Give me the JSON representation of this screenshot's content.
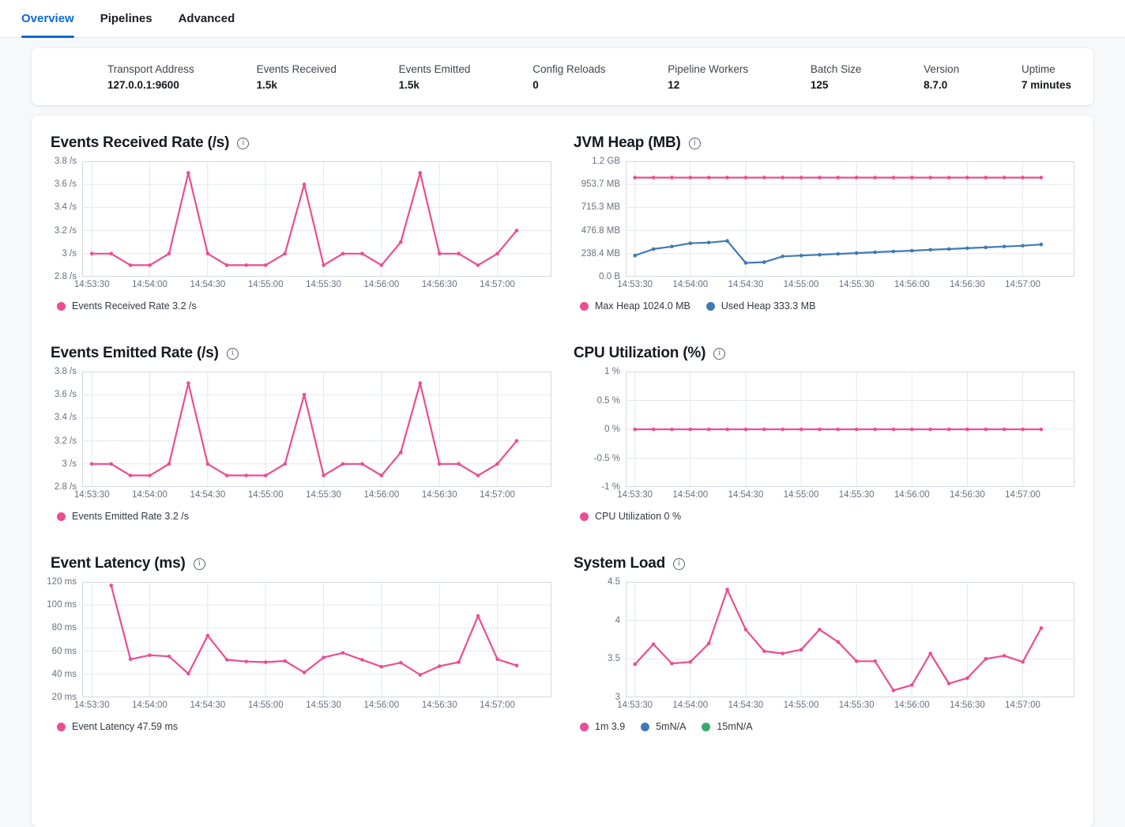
{
  "tabs": [
    {
      "label": "Overview",
      "active": true
    },
    {
      "label": "Pipelines",
      "active": false
    },
    {
      "label": "Advanced",
      "active": false
    }
  ],
  "stats": [
    {
      "label": "Transport Address",
      "value": "127.0.0.1:9600"
    },
    {
      "label": "Events Received",
      "value": "1.5k"
    },
    {
      "label": "Events Emitted",
      "value": "1.5k"
    },
    {
      "label": "Config Reloads",
      "value": "0"
    },
    {
      "label": "Pipeline Workers",
      "value": "12"
    },
    {
      "label": "Batch Size",
      "value": "125"
    },
    {
      "label": "Version",
      "value": "8.7.0"
    },
    {
      "label": "Uptime",
      "value": "7 minutes"
    }
  ],
  "colors": {
    "pink": "#ED4C92",
    "blue": "#3F7AB5",
    "green": "#36AB68",
    "active_tab": "#0B6BD8",
    "grid": "#E4E7ED",
    "plot_border": "#D4D8DF"
  },
  "axis": {
    "x_domain_seconds": [
      -5,
      238
    ],
    "x_grid_seconds": [
      0,
      30,
      60,
      90,
      120,
      150,
      180,
      210
    ],
    "x_tick_labels": [
      "14:53:30",
      "14:54:00",
      "14:54:30",
      "14:55:00",
      "14:55:30",
      "14:56:00",
      "14:56:30",
      "14:57:00"
    ]
  },
  "chart_data": [
    {
      "type": "line",
      "title": "Events Received Rate (/s)",
      "ylim": [
        2.8,
        3.8
      ],
      "y_tick_labels": [
        "3.8 /s",
        "3.6 /s",
        "3.4 /s",
        "3.2 /s",
        "3 /s",
        "2.8 /s"
      ],
      "series": [
        {
          "name": "Events Received Rate",
          "color": "#ED4C92",
          "start": 0,
          "step": 10,
          "values": [
            3,
            3,
            2.9,
            2.9,
            3,
            3.7,
            3,
            2.9,
            2.9,
            2.9,
            3,
            3.6,
            2.9,
            3,
            3,
            2.9,
            3.1,
            3.7,
            3,
            3,
            2.9,
            3,
            3.2
          ]
        }
      ],
      "legend": [
        {
          "label": "Events Received Rate 3.2 /s",
          "color": "#ED4C92"
        }
      ]
    },
    {
      "type": "line",
      "title": "JVM Heap (MB)",
      "ylim": [
        0,
        1192
      ],
      "y_tick_labels": [
        "1.2 GB",
        "953.7 MB",
        "715.3 MB",
        "476.8 MB",
        "238.4 MB",
        "0.0 B"
      ],
      "series": [
        {
          "name": "Max Heap",
          "color": "#ED4C92",
          "start": 0,
          "step": 10,
          "values": [
            1024,
            1024,
            1024,
            1024,
            1024,
            1024,
            1024,
            1024,
            1024,
            1024,
            1024,
            1024,
            1024,
            1024,
            1024,
            1024,
            1024,
            1024,
            1024,
            1024,
            1024,
            1024,
            1024
          ]
        },
        {
          "name": "Used Heap",
          "color": "#3F7AB5",
          "start": 0,
          "step": 10,
          "values": [
            219,
            286,
            312,
            345,
            353,
            370,
            143,
            150,
            210,
            219,
            227,
            236,
            244,
            253,
            261,
            269,
            278,
            286,
            295,
            303,
            312,
            320,
            333.3
          ]
        }
      ],
      "legend": [
        {
          "label": "Max Heap 1024.0 MB",
          "color": "#ED4C92"
        },
        {
          "label": "Used Heap 333.3 MB",
          "color": "#3F7AB5"
        }
      ]
    },
    {
      "type": "line",
      "title": "Events Emitted Rate (/s)",
      "ylim": [
        2.8,
        3.8
      ],
      "y_tick_labels": [
        "3.8 /s",
        "3.6 /s",
        "3.4 /s",
        "3.2 /s",
        "3 /s",
        "2.8 /s"
      ],
      "series": [
        {
          "name": "Events Emitted Rate",
          "color": "#ED4C92",
          "start": 0,
          "step": 10,
          "values": [
            3,
            3,
            2.9,
            2.9,
            3,
            3.7,
            3,
            2.9,
            2.9,
            2.9,
            3,
            3.6,
            2.9,
            3,
            3,
            2.9,
            3.1,
            3.7,
            3,
            3,
            2.9,
            3,
            3.2
          ]
        }
      ],
      "legend": [
        {
          "label": "Events Emitted Rate 3.2 /s",
          "color": "#ED4C92"
        }
      ]
    },
    {
      "type": "line",
      "title": "CPU Utilization (%)",
      "ylim": [
        -1,
        1
      ],
      "y_tick_labels": [
        "1 %",
        "0.5 %",
        "0 %",
        "-0.5 %",
        "-1 %"
      ],
      "series": [
        {
          "name": "CPU Utilization",
          "color": "#ED4C92",
          "start": 0,
          "step": 10,
          "values": [
            0,
            0,
            0,
            0,
            0,
            0,
            0,
            0,
            0,
            0,
            0,
            0,
            0,
            0,
            0,
            0,
            0,
            0,
            0,
            0,
            0,
            0,
            0
          ]
        }
      ],
      "legend": [
        {
          "label": "CPU Utilization 0 %",
          "color": "#ED4C92"
        }
      ]
    },
    {
      "type": "line",
      "title": "Event Latency (ms)",
      "ylim": [
        20,
        120
      ],
      "y_tick_labels": [
        "120 ms",
        "100 ms",
        "80 ms",
        "60 ms",
        "40 ms",
        "20 ms"
      ],
      "series": [
        {
          "name": "Event Latency",
          "color": "#ED4C92",
          "start": 10,
          "step": 10,
          "values": [
            117,
            53,
            56.5,
            55.5,
            40.5,
            73.5,
            52.5,
            51,
            50.5,
            51.5,
            41.5,
            54.5,
            58.5,
            52.5,
            46.5,
            50,
            39.5,
            47,
            50.5,
            90.5,
            53,
            47.59
          ]
        }
      ],
      "legend": [
        {
          "label": "Event Latency 47.59 ms",
          "color": "#ED4C92"
        }
      ]
    },
    {
      "type": "line",
      "title": "System Load",
      "ylim": [
        3,
        4.5
      ],
      "y_tick_labels": [
        "4.5",
        "4",
        "3.5",
        "3"
      ],
      "series": [
        {
          "name": "1m",
          "color": "#ED4C92",
          "start": 0,
          "step": 10,
          "values": [
            3.43,
            3.69,
            3.44,
            3.46,
            3.7,
            4.4,
            3.88,
            3.6,
            3.57,
            3.62,
            3.88,
            3.72,
            3.47,
            3.47,
            3.09,
            3.16,
            3.57,
            3.18,
            3.25,
            3.5,
            3.54,
            3.46,
            3.9
          ]
        }
      ],
      "legend": [
        {
          "label": "1m 3.9",
          "color": "#ED4C92"
        },
        {
          "label": "5mN/A",
          "color": "#3F7AB5"
        },
        {
          "label": "15mN/A",
          "color": "#36AB68"
        }
      ]
    }
  ]
}
